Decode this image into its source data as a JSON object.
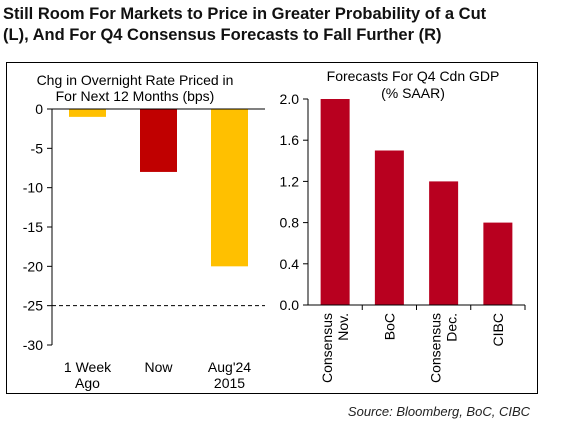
{
  "header": {
    "title_line1": "Still Room For Markets to Price in Greater Probability of a Cut",
    "title_line2": "(L), And For Q4 Consensus Forecasts to Fall Further (R)"
  },
  "source": "Source: Bloomberg, BoC, CIBC",
  "colors": {
    "gold": "#FFC000",
    "red": "#C00000",
    "dark_red": "#B8001F"
  },
  "chart_data": [
    {
      "type": "bar",
      "title_lines": [
        "Chg in Overnight Rate Priced in",
        "For Next 12 Months (bps)"
      ],
      "categories": [
        [
          "1 Week",
          "Ago"
        ],
        [
          "Now"
        ],
        [
          "Aug'24",
          "2015"
        ]
      ],
      "values": [
        -1,
        -8,
        -20
      ],
      "bar_colors": [
        "#FFC000",
        "#C00000",
        "#FFC000"
      ],
      "ylim": [
        -30,
        0
      ],
      "yticks": [
        0,
        -5,
        -10,
        -15,
        -20,
        -25,
        -30
      ],
      "reference_line": {
        "value": -25,
        "style": "dashed"
      }
    },
    {
      "type": "bar",
      "title_lines": [
        "Forecasts For Q4 Cdn GDP",
        "(% SAAR)"
      ],
      "categories": [
        [
          "Nov.",
          "Consensus"
        ],
        [
          "BoC"
        ],
        [
          "Dec.",
          "Consensus"
        ],
        [
          "CIBC"
        ]
      ],
      "values": [
        2.0,
        1.5,
        1.2,
        0.8
      ],
      "bar_color": "#B8001F",
      "ylim": [
        0,
        2.0
      ],
      "yticks": [
        "0.0",
        "0.4",
        "0.8",
        "1.2",
        "1.6",
        "2.0"
      ]
    }
  ]
}
